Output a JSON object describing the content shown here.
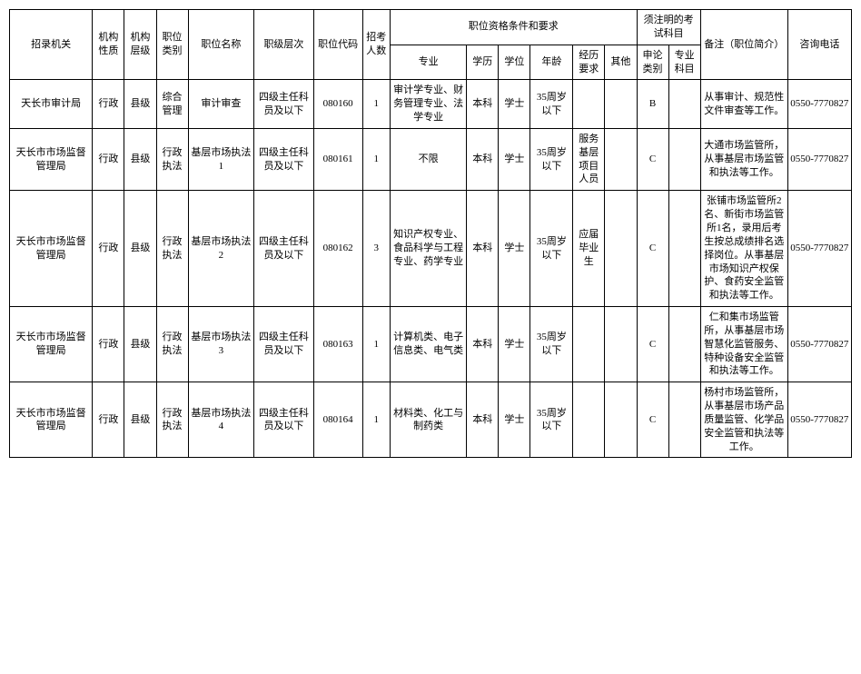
{
  "headers": {
    "org": "招录机关",
    "nature": "机构性质",
    "level": "机构层级",
    "cat": "职位类别",
    "pname": "职位名称",
    "plevel": "职级层次",
    "code": "职位代码",
    "count": "招考人数",
    "qual_group": "职位资格条件和要求",
    "major": "专业",
    "edu": "学历",
    "deg": "学位",
    "age": "年龄",
    "exp": "经历要求",
    "other": "其他",
    "exam_group": "须注明的考试科目",
    "sub1": "申论类别",
    "sub2": "专业科目",
    "remark": "备注（职位简介）",
    "phone": "咨询电话"
  },
  "rows": [
    {
      "org": "天长市审计局",
      "nature": "行政",
      "level": "县级",
      "cat": "综合管理",
      "pname": "审计审查",
      "plevel": "四级主任科员及以下",
      "code": "080160",
      "count": "1",
      "major": "审计学专业、财务管理专业、法学专业",
      "edu": "本科",
      "deg": "学士",
      "age": "35周岁以下",
      "exp": "",
      "other": "",
      "sub1": "B",
      "sub2": "",
      "remark": "从事审计、规范性文件审查等工作。",
      "phone": "0550-7770827"
    },
    {
      "org": "天长市市场监督管理局",
      "nature": "行政",
      "level": "县级",
      "cat": "行政执法",
      "pname": "基层市场执法1",
      "plevel": "四级主任科员及以下",
      "code": "080161",
      "count": "1",
      "major": "不限",
      "edu": "本科",
      "deg": "学士",
      "age": "35周岁以下",
      "exp": "服务基层项目人员",
      "other": "",
      "sub1": "C",
      "sub2": "",
      "remark": "大通市场监管所，从事基层市场监管和执法等工作。",
      "phone": "0550-7770827"
    },
    {
      "org": "天长市市场监督管理局",
      "nature": "行政",
      "level": "县级",
      "cat": "行政执法",
      "pname": "基层市场执法2",
      "plevel": "四级主任科员及以下",
      "code": "080162",
      "count": "3",
      "major": "知识产权专业、食品科学与工程专业、药学专业",
      "edu": "本科",
      "deg": "学士",
      "age": "35周岁以下",
      "exp": "应届毕业生",
      "other": "",
      "sub1": "C",
      "sub2": "",
      "remark": "张铺市场监管所2名、新街市场监管所1名，录用后考生按总成绩排名选择岗位。从事基层市场知识产权保护、食药安全监管和执法等工作。",
      "phone": "0550-7770827"
    },
    {
      "org": "天长市市场监督管理局",
      "nature": "行政",
      "level": "县级",
      "cat": "行政执法",
      "pname": "基层市场执法3",
      "plevel": "四级主任科员及以下",
      "code": "080163",
      "count": "1",
      "major": "计算机类、电子信息类、电气类",
      "edu": "本科",
      "deg": "学士",
      "age": "35周岁以下",
      "exp": "",
      "other": "",
      "sub1": "C",
      "sub2": "",
      "remark": "仁和集市场监管所，从事基层市场智慧化监管服务、特种设备安全监管和执法等工作。",
      "phone": "0550-7770827"
    },
    {
      "org": "天长市市场监督管理局",
      "nature": "行政",
      "level": "县级",
      "cat": "行政执法",
      "pname": "基层市场执法4",
      "plevel": "四级主任科员及以下",
      "code": "080164",
      "count": "1",
      "major": "材料类、化工与制药类",
      "edu": "本科",
      "deg": "学士",
      "age": "35周岁以下",
      "exp": "",
      "other": "",
      "sub1": "C",
      "sub2": "",
      "remark": "杨村市场监管所，从事基层市场产品质量监管、化学品安全监管和执法等工作。",
      "phone": "0550-7770827"
    }
  ]
}
